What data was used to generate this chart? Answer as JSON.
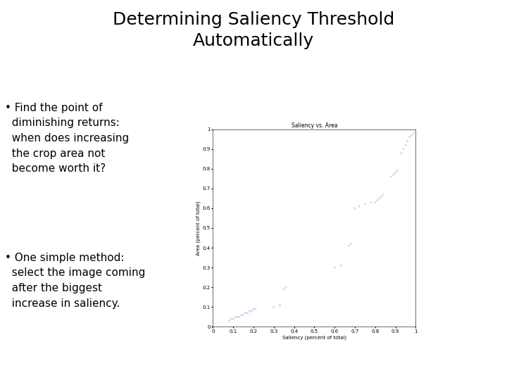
{
  "title": "Determining Saliency Threshold\nAutomatically",
  "scatter_title": "Saliency vs. Area",
  "xlabel": "Saliency (percent of total)",
  "ylabel": "Area (percent of total)",
  "bullet1": "• Find the point of\n  diminishing returns:\n  when does increasing\n  the crop area not\n  become worth it?",
  "bullet2": "• One simple method:\n  select the image coming\n  after the biggest\n  increase in saliency.",
  "scatter_x": [
    0.08,
    0.09,
    0.1,
    0.11,
    0.12,
    0.13,
    0.14,
    0.15,
    0.16,
    0.17,
    0.18,
    0.19,
    0.2,
    0.21,
    0.35,
    0.36,
    0.67,
    0.68,
    0.8,
    0.81,
    0.82,
    0.83,
    0.84,
    0.88,
    0.89,
    0.9,
    0.91,
    0.93,
    0.94,
    0.95,
    0.96,
    0.97,
    0.98,
    0.99,
    1.0,
    0.7,
    0.72,
    0.75,
    0.78,
    0.6,
    0.63,
    0.3,
    0.33
  ],
  "scatter_y": [
    0.03,
    0.04,
    0.04,
    0.05,
    0.05,
    0.05,
    0.06,
    0.06,
    0.07,
    0.07,
    0.08,
    0.08,
    0.09,
    0.09,
    0.19,
    0.2,
    0.41,
    0.42,
    0.63,
    0.64,
    0.65,
    0.66,
    0.67,
    0.76,
    0.77,
    0.78,
    0.79,
    0.88,
    0.9,
    0.92,
    0.94,
    0.96,
    0.97,
    0.98,
    1.0,
    0.6,
    0.61,
    0.62,
    0.63,
    0.3,
    0.31,
    0.1,
    0.11
  ],
  "scatter_color": "#aaaadd",
  "background_color": "#ffffff",
  "title_fontsize": 18,
  "bullet_fontsize": 11,
  "scatter_title_fontsize": 5.5,
  "axis_label_fontsize": 5,
  "tick_fontsize": 5,
  "xlim": [
    0,
    1
  ],
  "ylim": [
    0,
    1
  ],
  "xticks": [
    0,
    0.1,
    0.2,
    0.3,
    0.4,
    0.5,
    0.6,
    0.7,
    0.8,
    0.9,
    1
  ],
  "yticks": [
    0,
    0.1,
    0.2,
    0.3,
    0.4,
    0.5,
    0.6,
    0.7,
    0.8,
    0.9,
    1
  ]
}
